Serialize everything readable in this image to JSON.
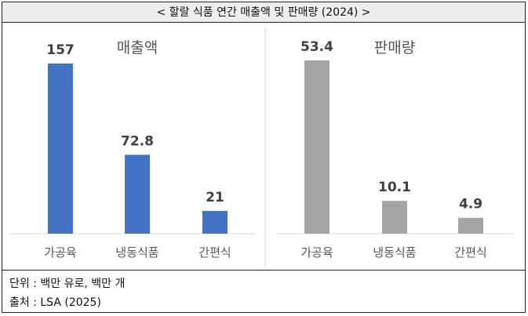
{
  "title": "< 할랄 식품 연간 매출액 및 판매량 (2024) >",
  "chart_data": [
    {
      "type": "bar",
      "title": "매출액",
      "categories": [
        "가공육",
        "냉동식품",
        "간편식"
      ],
      "values": [
        157,
        72.8,
        21
      ],
      "value_labels": [
        "157",
        "72.8",
        "21"
      ],
      "color": "#4472c4",
      "ylim": [
        0,
        157
      ]
    },
    {
      "type": "bar",
      "title": "판매량",
      "categories": [
        "가공육",
        "냉동식품",
        "간편식"
      ],
      "values": [
        53.4,
        10.1,
        4.9
      ],
      "value_labels": [
        "53.4",
        "10.1",
        "4.9"
      ],
      "color": "#a5a5a5",
      "ylim": [
        0,
        53.4
      ]
    }
  ],
  "footer": {
    "unit": "단위 : 백만 유로, 백만 개",
    "source": "출처 : LSA (2025)"
  }
}
